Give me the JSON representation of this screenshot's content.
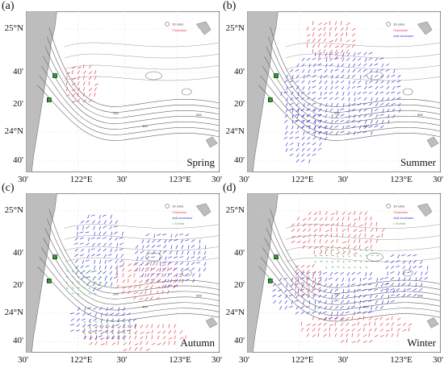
{
  "panels": [
    {
      "letter": "(a)",
      "season": "Spring",
      "lon_labels": [
        "30'",
        "122°E",
        "30'",
        "123°E",
        "30'"
      ],
      "lat_labels": [
        "25°N",
        "40'",
        "20'",
        "24°N",
        "40'"
      ],
      "vectors": [
        "clockwise"
      ]
    },
    {
      "letter": "(b)",
      "season": "Summer",
      "lon_labels": [
        "30'",
        "122°E",
        "30'",
        "123°E",
        "30'"
      ],
      "lat_labels": [
        "25°N",
        "40'",
        "20'",
        "24°N",
        "40'"
      ],
      "vectors": [
        "clockwise",
        "anticlockwise"
      ]
    },
    {
      "letter": "(c)",
      "season": "Autumn",
      "lon_labels": [
        "30'",
        "122°E",
        "30'",
        "123°E",
        "30'"
      ],
      "lat_labels": [
        "25°N",
        "40'",
        "20'",
        "24°N",
        "40'"
      ],
      "vectors": [
        "clockwise",
        "anticlockwise",
        "slow"
      ]
    },
    {
      "letter": "(d)",
      "season": "Winter",
      "lon_labels": [
        "30'",
        "122°E",
        "30'",
        "123°E",
        "30'"
      ],
      "lat_labels": [
        "25°N",
        "40'",
        "20'",
        "24°N",
        "40'"
      ],
      "vectors": [
        "clockwise",
        "anticlockwise",
        "slow"
      ]
    }
  ],
  "legend": {
    "scale": "10 cm/s",
    "clockwise": "Clockwise",
    "anticlockwise": "Anti-clockwise",
    "slow": "< 5 cm/s"
  },
  "colors": {
    "land": "#bdbdbd",
    "contour": "#666666",
    "clockwise": "#e8434a",
    "anticlockwise": "#3b3bd6",
    "slow": "#2ea84a",
    "station": "#1fa51f"
  },
  "contour_labels": [
    "200",
    "400",
    "600"
  ]
}
